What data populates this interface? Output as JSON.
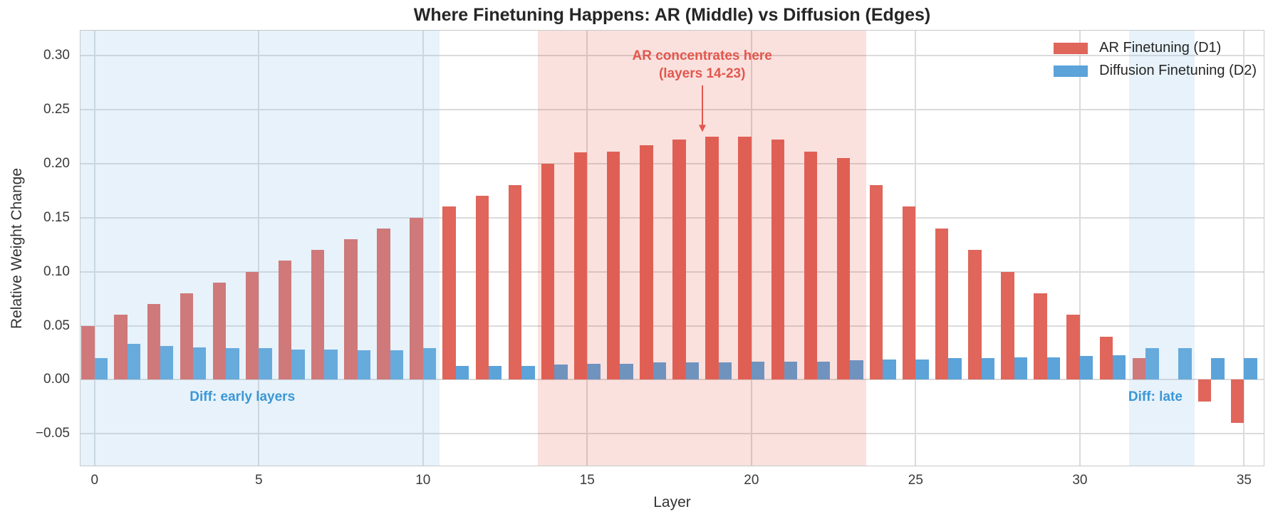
{
  "chart_data": {
    "type": "bar",
    "title": "Where Finetuning Happens: AR (Middle) vs Diffusion (Edges)",
    "xlabel": "Layer",
    "ylabel": "Relative Weight Change",
    "categories": [
      0,
      1,
      2,
      3,
      4,
      5,
      6,
      7,
      8,
      9,
      10,
      11,
      12,
      13,
      14,
      15,
      16,
      17,
      18,
      19,
      20,
      21,
      22,
      23,
      24,
      25,
      26,
      27,
      28,
      29,
      30,
      31,
      32,
      33,
      34,
      35
    ],
    "series": [
      {
        "name": "AR Finetuning (D1)",
        "color": "#E0655B",
        "values": [
          0.05,
          0.06,
          0.07,
          0.08,
          0.09,
          0.1,
          0.11,
          0.12,
          0.13,
          0.14,
          0.15,
          0.16,
          0.17,
          0.18,
          0.2,
          0.21,
          0.211,
          0.217,
          0.222,
          0.225,
          0.225,
          0.222,
          0.211,
          0.205,
          0.18,
          0.16,
          0.14,
          0.12,
          0.1,
          0.08,
          0.06,
          0.04,
          0.02,
          0.0,
          -0.02,
          -0.04
        ]
      },
      {
        "name": "Diffusion Finetuning (D2)",
        "color": "#5BA3D9",
        "values": [
          0.02,
          0.033,
          0.031,
          0.03,
          0.029,
          0.029,
          0.028,
          0.028,
          0.027,
          0.027,
          0.029,
          0.013,
          0.013,
          0.013,
          0.014,
          0.015,
          0.015,
          0.016,
          0.016,
          0.016,
          0.017,
          0.017,
          0.017,
          0.018,
          0.019,
          0.019,
          0.02,
          0.02,
          0.021,
          0.021,
          0.022,
          0.023,
          0.029,
          0.029,
          0.02,
          0.02
        ]
      }
    ],
    "xticks": [
      0,
      5,
      10,
      15,
      20,
      25,
      30,
      35
    ],
    "yticks": [
      0.3,
      0.25,
      0.2,
      0.15,
      0.1,
      0.05,
      0.0,
      -0.05
    ],
    "xlim": [
      -0.45,
      35.62
    ],
    "ylim": [
      -0.08,
      0.3235
    ],
    "grid": true,
    "legend_position": "upper right",
    "bands": [
      {
        "name": "early-layers",
        "xfrom": -0.45,
        "xto": 10.5,
        "color": "rgba(145,198,231,0.22)"
      },
      {
        "name": "ar-middle",
        "xfrom": 13.5,
        "xto": 23.5,
        "color": "rgba(227,66,52,0.16)"
      },
      {
        "name": "late-layers",
        "xfrom": 31.5,
        "xto": 33.5,
        "color": "rgba(145,198,231,0.22)"
      }
    ],
    "annotations": {
      "ar": {
        "line1": "AR concentrates here",
        "line2": "(layers 14-23)",
        "x": 18.5,
        "text_top_value": 0.308,
        "arrow_start_value": 0.272,
        "arrow_tip_value": 0.229,
        "color": "#E2574D"
      },
      "diff_early": {
        "text": "Diff: early layers",
        "x": 4.5,
        "y": -0.016,
        "color": "#3B97D6"
      },
      "diff_late": {
        "text": "Diff: late",
        "x": 32.3,
        "y": -0.016,
        "color": "#3B97D6"
      }
    },
    "colors": {
      "grid": "#DBDBDB",
      "spine": "#C9C9C9",
      "title_text": "#262626",
      "tick_text": "#3A3A3A"
    }
  }
}
